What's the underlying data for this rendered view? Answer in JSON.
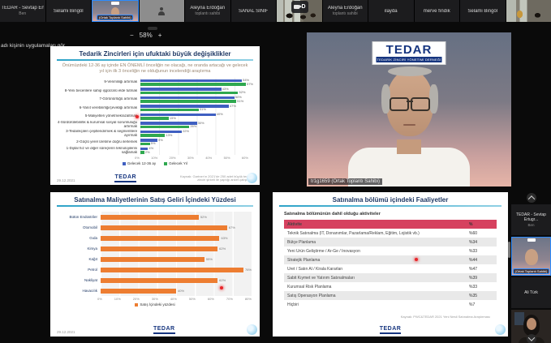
{
  "colors": {
    "bar_blue": "#3f5fc1",
    "bar_green": "#2fa84f",
    "bar_orange": "#ed7d31",
    "table_header_red": "#d6415f",
    "title_navy": "#1f3864",
    "active_tile_border": "#2d8cff"
  },
  "overlay": {
    "notification": "adı kişinin uygulamaları gör..",
    "zoom_minus": "−",
    "zoom_level": "58%",
    "zoom_plus": "+",
    "camera_label": "D"
  },
  "top_strip": {
    "tiles": [
      {
        "kind": "name",
        "name": "TEDAR - Sevtap Ertugr...",
        "sub": "Ben"
      },
      {
        "kind": "name",
        "name": "Selami Bingöl",
        "sub": ""
      },
      {
        "kind": "speaker_video",
        "label": "(Ortak Toplantı Sahibi)"
      },
      {
        "kind": "avatar",
        "name": ""
      },
      {
        "kind": "name",
        "name": "Aleyna Erdoğan",
        "sub": "toplantı sahibi"
      },
      {
        "kind": "name",
        "name": "SANAL SINIF",
        "sub": ""
      },
      {
        "kind": "classroom"
      },
      {
        "kind": "name",
        "name": "Aleyna Erdoğan",
        "sub": "toplantı sahibi"
      },
      {
        "kind": "name",
        "name": "ilayda",
        "sub": ""
      },
      {
        "kind": "name",
        "name": "merve fındık",
        "sub": ""
      },
      {
        "kind": "name",
        "name": "Selami Bingöl",
        "sub": ""
      },
      {
        "kind": "classroom2"
      }
    ]
  },
  "speaker": {
    "logo_word": "TEDAR",
    "logo_sub": "TEDARİK ZİNCİRİ YÖNETİMİ DERNEĞİ",
    "name_label": "tr1g1659 (Ortak Toplantı Sahibi)"
  },
  "filmstrip": {
    "tiles": [
      {
        "kind": "name",
        "name": "TEDAR - Sevtap Ertugr...",
        "sub": "Ben"
      },
      {
        "kind": "speaker_video",
        "label": "(Ortak Toplantı Sahibi)"
      },
      {
        "kind": "name",
        "name": "Ali Türk",
        "sub": ""
      },
      {
        "kind": "woman_video"
      }
    ]
  },
  "slide_priorities": {
    "title": "Tedarik Zincirleri için ufuktaki büyük değişiklikler",
    "subtitle": "Önümüzdeki 12-36 ay içinde EN ÖNEMLİ önceliğin ne olacağı, ne oranda artacağı ve gelecek yıl için ilk 3 önceliğin ne olduğunun incelendiği araştırma",
    "date": "29.12.2021",
    "source": "Kaynak: Gartner'ın 2021'de 250 adet büyük tedarik zinciri şirketi ile yaptığı anket çalışması",
    "logo": "TEDAR"
  },
  "slide_costs": {
    "title": "Satınalma Maliyetlerinin Satış Geliri İçindeki Yüzdesi",
    "date": "29.12.2021",
    "logo": "TEDAR"
  },
  "slide_activities": {
    "title": "Satınalma bölümü içindeki Faaliyetler",
    "subtitle": "Satınalma bölümünün dahil olduğu aktiviteler",
    "source": "Kaynak: PWC&TEDAR 2021 Yeni Nesil Satınalma Araştırması",
    "logo": "TEDAR"
  },
  "chart_data": [
    {
      "type": "bar",
      "orientation": "horizontal",
      "title": "Tedarik Zincirleri için ufuktaki büyük değişiklikler",
      "categories": [
        "9-Verimliliği artırmak",
        "8-Yeni becerilere sahip işgücünü elde tutmak",
        "7-Görünürlüğü artırmak",
        "6-Yanıt verebilirliği/çevikliği artırmak",
        "5-Maliyetleri yönetmek/azaltmak",
        "4-Sürdürülebilirlik & kurumsal sosyal sorumluluğu artırmak",
        "3-Tedarikçileri çeşitlendirmek & segmentlere ayırmak",
        "2-Güçlü yerel üretime doğru ilerlemek",
        "1-Dijital hız ve diğer süreçlerin teknolojilerini sağlamak"
      ],
      "series": [
        {
          "name": "Gelecek 12-36 ay",
          "color": "#3f5fc1",
          "values": [
            54,
            43,
            50,
            47,
            40,
            30,
            22,
            9,
            4
          ]
        },
        {
          "name": "Gelecek Yıl",
          "color": "#2fa84f",
          "values": [
            57,
            52,
            51,
            31,
            15,
            26,
            13,
            5,
            2
          ]
        }
      ],
      "xlim": [
        0,
        60
      ],
      "xticks": [
        "0%",
        "10%",
        "20%",
        "30%",
        "40%",
        "50%",
        "60%"
      ],
      "legend_position": "bottom",
      "grid": true
    },
    {
      "type": "bar",
      "orientation": "horizontal",
      "title": "Satınalma Maliyetlerinin Satış Geliri İçindeki Yüzdesi",
      "categories": [
        "Bütün Endüstriler",
        "Otomobil",
        "Gıda",
        "Kimya",
        "Kağıt",
        "Petrol",
        "Nakliyat",
        "Havacılık"
      ],
      "values": [
        52,
        67,
        63,
        62,
        55,
        76,
        62,
        40
      ],
      "value_labels": [
        "52%",
        "67%",
        "63%",
        "62%",
        "55%",
        "76%",
        "62%",
        "40%"
      ],
      "color": "#ed7d31",
      "legend": "Satış İçindeki yüzdesi",
      "xlim": [
        0,
        80
      ],
      "xticks": [
        "0%",
        "10%",
        "20%",
        "30%",
        "40%",
        "50%",
        "60%",
        "70%",
        "80%"
      ],
      "legend_position": "bottom",
      "grid": true
    },
    {
      "type": "table",
      "title": "Satınalma bölümü içindeki Faaliyetler",
      "header": [
        "Aktivite",
        "%"
      ],
      "rows": [
        [
          "Teknik Satınalma (IT, Donanımlar, Pazarlama/Reklam, Eğitim, Lojistik vb.)",
          "%60"
        ],
        [
          "Bütçe Planlama",
          "%34"
        ],
        [
          "Yeni Ürün Geliştirme / Ar-Ge / İnovasyon",
          "%33"
        ],
        [
          "Stratejik Planlama",
          "%44"
        ],
        [
          "Üret / Satın Al / Kirala Kararları",
          "%47"
        ],
        [
          "Sabit Kıymet ve Yatırım Satınalmaları",
          "%39"
        ],
        [
          "Kurumsal Risk Planlama",
          "%33"
        ],
        [
          "Satış Operasyon Planlama",
          "%35"
        ],
        [
          "Hiçbiri",
          "%7"
        ]
      ]
    }
  ]
}
